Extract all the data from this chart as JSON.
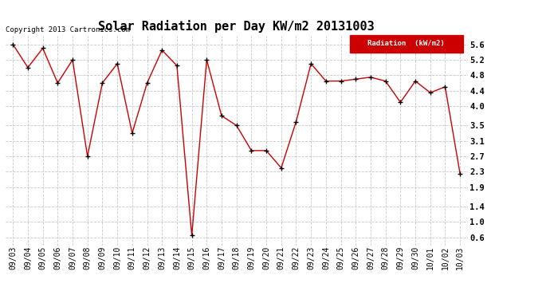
{
  "title": "Solar Radiation per Day KW/m2 20131003",
  "copyright": "Copyright 2013 Cartronics.com",
  "legend_label": "Radiation  (kW/m2)",
  "background_color": "#ffffff",
  "plot_bg_color": "#ffffff",
  "grid_color": "#c8c8c8",
  "line_color": "#cc0000",
  "marker_color": "#000000",
  "legend_bg": "#cc0000",
  "legend_fg": "#ffffff",
  "dates": [
    "09/03",
    "09/04",
    "09/05",
    "09/06",
    "09/07",
    "09/08",
    "09/09",
    "09/10",
    "09/11",
    "09/12",
    "09/13",
    "09/14",
    "09/15",
    "09/16",
    "09/17",
    "09/18",
    "09/19",
    "09/20",
    "09/21",
    "09/22",
    "09/23",
    "09/24",
    "09/25",
    "09/26",
    "09/27",
    "09/28",
    "09/29",
    "09/30",
    "10/01",
    "10/02",
    "10/03"
  ],
  "values": [
    5.6,
    5.0,
    5.5,
    4.6,
    5.2,
    2.7,
    4.6,
    5.1,
    3.3,
    4.6,
    5.45,
    5.05,
    0.65,
    5.2,
    3.75,
    3.5,
    2.85,
    2.85,
    2.4,
    3.6,
    5.1,
    4.65,
    4.65,
    4.7,
    4.75,
    4.65,
    4.1,
    4.65,
    4.35,
    4.5,
    2.25
  ],
  "ylim": [
    0.4,
    5.82
  ],
  "yticks": [
    0.6,
    1.0,
    1.4,
    1.9,
    2.3,
    2.7,
    3.1,
    3.5,
    4.0,
    4.4,
    4.8,
    5.2,
    5.6
  ],
  "title_fontsize": 11,
  "tick_fontsize": 7,
  "ytick_fontsize": 7.5,
  "copyright_fontsize": 6.5
}
